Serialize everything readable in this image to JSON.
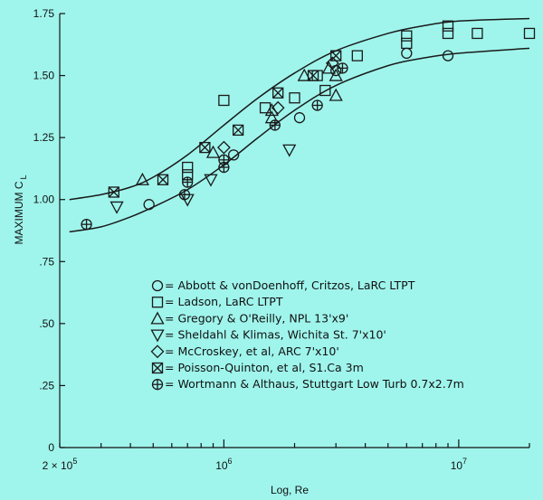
{
  "chart_data": {
    "type": "scatter",
    "xlabel": "Log, Re",
    "ylabel_main": "MAXIMUM C",
    "ylabel_sub": "L",
    "x_scale": "log",
    "xlim": [
      200000,
      20000000
    ],
    "ylim": [
      0,
      1.75
    ],
    "y_ticks": [
      {
        "value": 0,
        "label": "0"
      },
      {
        "value": 0.25,
        "label": ".25"
      },
      {
        "value": 0.5,
        "label": ".50"
      },
      {
        "value": 0.75,
        "label": ".75"
      },
      {
        "value": 1.0,
        "label": "1.00"
      },
      {
        "value": 1.25,
        "label": "1.25"
      },
      {
        "value": 1.5,
        "label": "1.50"
      },
      {
        "value": 1.75,
        "label": "1.75"
      }
    ],
    "x_ticks": [
      {
        "value": 200000,
        "base": "2 × 10",
        "exp": "5"
      },
      {
        "value": 1000000,
        "base": "10",
        "exp": "6"
      },
      {
        "value": 10000000,
        "base": "10",
        "exp": "7"
      }
    ],
    "grid": false,
    "legend_position": "bottom-right",
    "series": [
      {
        "name": "= Abbott & vonDoenhoff, Critzos, LaRC LTPT",
        "marker": "circle",
        "points": [
          [
            480000,
            0.98
          ],
          [
            1100000,
            1.18
          ],
          [
            2100000,
            1.33
          ],
          [
            3000000,
            1.52
          ],
          [
            6000000,
            1.59
          ],
          [
            9000000,
            1.58
          ]
        ]
      },
      {
        "name": "= Ladson, LaRC LTPT",
        "marker": "square",
        "points": [
          [
            1000000,
            1.4
          ],
          [
            1500000,
            1.37
          ],
          [
            2000000,
            1.41
          ],
          [
            2500000,
            1.5
          ],
          [
            2700000,
            1.44
          ],
          [
            3700000,
            1.58
          ],
          [
            6000000,
            1.66
          ],
          [
            6000000,
            1.63
          ],
          [
            9000000,
            1.67
          ],
          [
            9000000,
            1.7
          ],
          [
            12000000,
            1.67
          ],
          [
            20000000,
            1.67
          ],
          [
            700000,
            1.13
          ],
          [
            700000,
            1.1
          ]
        ]
      },
      {
        "name": "= Gregory & O'Reilly, NPL 13'x9'",
        "marker": "triangle-up",
        "points": [
          [
            450000,
            1.08
          ],
          [
            900000,
            1.19
          ],
          [
            1600000,
            1.36
          ],
          [
            1600000,
            1.33
          ],
          [
            2200000,
            1.5
          ],
          [
            2800000,
            1.53
          ],
          [
            3000000,
            1.42
          ],
          [
            3000000,
            1.5
          ]
        ]
      },
      {
        "name": "= Sheldahl & Klimas, Wichita St. 7'x10'",
        "marker": "triangle-down",
        "points": [
          [
            350000,
            0.97
          ],
          [
            700000,
            1.0
          ],
          [
            880000,
            1.08
          ],
          [
            1900000,
            1.2
          ]
        ]
      },
      {
        "name": "= McCroskey, et al, ARC 7'x10'",
        "marker": "diamond",
        "points": [
          [
            1000000,
            1.21
          ],
          [
            1700000,
            1.37
          ],
          [
            2900000,
            1.55
          ]
        ]
      },
      {
        "name": "= Poisson-Quinton, et al, S1.Ca 3m",
        "marker": "boxed-x",
        "points": [
          [
            340000,
            1.03
          ],
          [
            550000,
            1.08
          ],
          [
            830000,
            1.21
          ],
          [
            1150000,
            1.28
          ],
          [
            1700000,
            1.43
          ],
          [
            2400000,
            1.5
          ],
          [
            3000000,
            1.58
          ]
        ]
      },
      {
        "name": "= Wortmann & Althaus, Stuttgart Low Turb 0.7x2.7m",
        "marker": "circle-plus",
        "points": [
          [
            260000,
            0.9
          ],
          [
            680000,
            1.02
          ],
          [
            700000,
            1.07
          ],
          [
            1000000,
            1.13
          ],
          [
            1000000,
            1.16
          ],
          [
            1650000,
            1.3
          ],
          [
            2500000,
            1.38
          ],
          [
            3200000,
            1.53
          ]
        ]
      }
    ],
    "curves": [
      {
        "points": [
          [
            220000,
            1.0
          ],
          [
            300000,
            1.02
          ],
          [
            400000,
            1.05
          ],
          [
            500000,
            1.09
          ],
          [
            700000,
            1.18
          ],
          [
            1000000,
            1.3
          ],
          [
            1400000,
            1.41
          ],
          [
            2000000,
            1.51
          ],
          [
            3000000,
            1.6
          ],
          [
            5000000,
            1.67
          ],
          [
            7000000,
            1.7
          ],
          [
            10000000,
            1.72
          ],
          [
            20000000,
            1.73
          ]
        ]
      },
      {
        "points": [
          [
            220000,
            0.87
          ],
          [
            300000,
            0.89
          ],
          [
            400000,
            0.93
          ],
          [
            500000,
            0.97
          ],
          [
            700000,
            1.04
          ],
          [
            1000000,
            1.14
          ],
          [
            1400000,
            1.25
          ],
          [
            2000000,
            1.36
          ],
          [
            3000000,
            1.46
          ],
          [
            5000000,
            1.54
          ],
          [
            7000000,
            1.57
          ],
          [
            10000000,
            1.59
          ],
          [
            20000000,
            1.61
          ]
        ]
      }
    ]
  }
}
